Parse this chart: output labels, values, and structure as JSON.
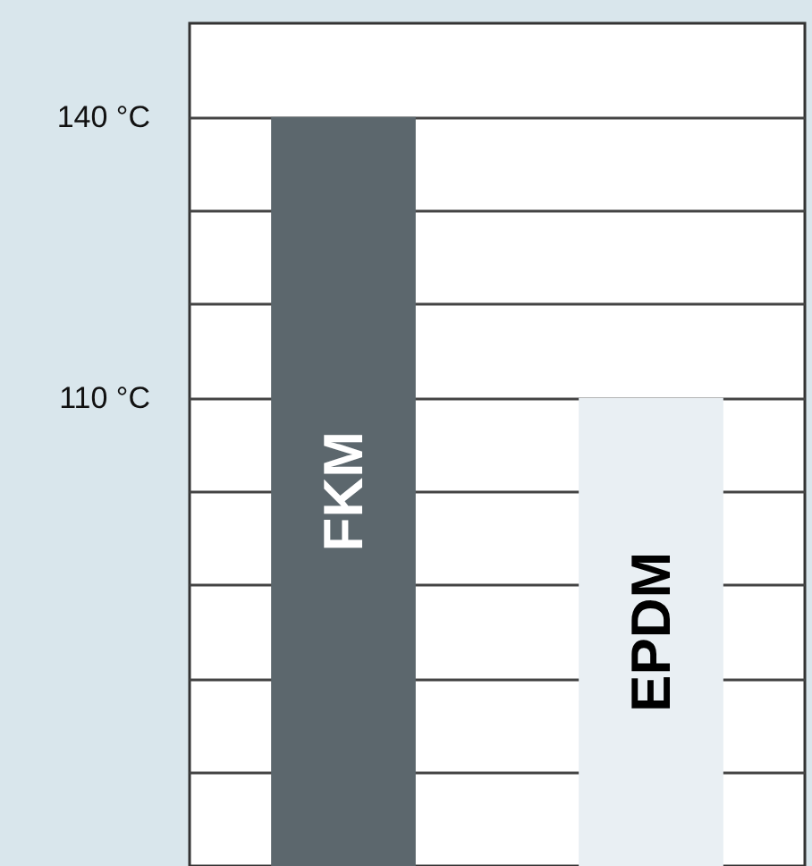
{
  "chart_data": {
    "type": "bar",
    "categories": [
      "FKM",
      "EPDM"
    ],
    "values": [
      140,
      110
    ],
    "colors": [
      "#5c676d",
      "#e9eff3"
    ],
    "ylim": [
      60,
      150
    ],
    "yticks": [
      {
        "value": 70,
        "label": null
      },
      {
        "value": 80,
        "label": null
      },
      {
        "value": 90,
        "label": null
      },
      {
        "value": 100,
        "label": null
      },
      {
        "value": 110,
        "label": "110 °C"
      },
      {
        "value": 120,
        "label": null
      },
      {
        "value": 130,
        "label": null
      },
      {
        "value": 140,
        "label": "140 °C"
      }
    ],
    "grid": "y",
    "tick_labels": "y"
  }
}
